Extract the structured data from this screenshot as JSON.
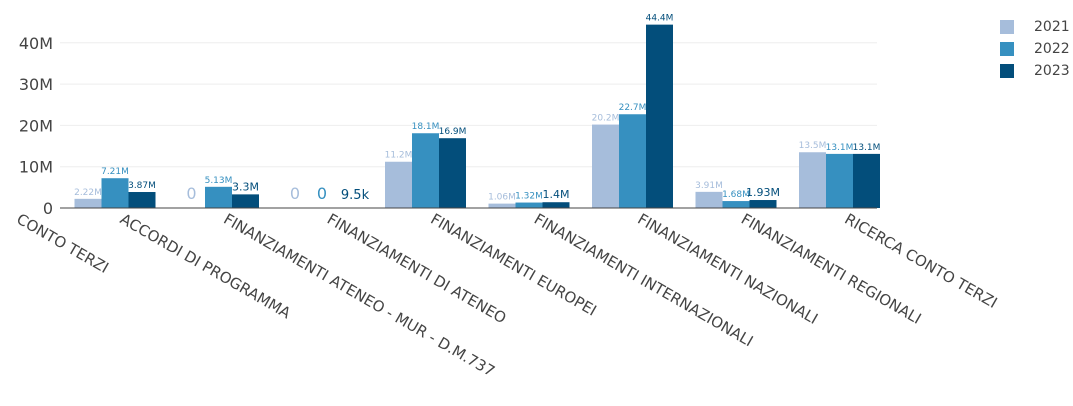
{
  "chart_data": {
    "type": "bar",
    "categories": [
      "CONTO TERZI",
      "ACCORDI DI PROGRAMMA",
      "FINANZIAMENTI ATENEO - MUR - D.M.737",
      "FINANZIAMENTI DI ATENEO",
      "FINANZIAMENTI EUROPEI",
      "FINANZIAMENTI INTERNAZIONALI",
      "FINANZIAMENTI NAZIONALI",
      "FINANZIAMENTI REGIONALI",
      "RICERCA CONTO TERZI"
    ],
    "series": [
      {
        "name": "2021",
        "color": "#a6bddb",
        "values": [
          null,
          2220000,
          0,
          0,
          11200000,
          1060000,
          20200000,
          3910000,
          13500000
        ],
        "labels": [
          null,
          "2.22M",
          "0",
          "0",
          "11.2M",
          "1.06M",
          "20.2M",
          "3.91M",
          "13.5M"
        ]
      },
      {
        "name": "2022",
        "color": "#3690c0",
        "values": [
          null,
          7210000,
          5130000,
          0,
          18100000,
          1320000,
          22700000,
          1680000,
          13100000
        ],
        "labels": [
          null,
          "7.21M",
          "5.13M",
          "0",
          "18.1M",
          "1.32M",
          "22.7M",
          "1.68M",
          "13.1M"
        ]
      },
      {
        "name": "2023",
        "color": "#034e7b",
        "values": [
          null,
          3870000,
          3300000,
          9500,
          16900000,
          1400000,
          44400000,
          1930000,
          13100000
        ],
        "labels": [
          null,
          "3.87M",
          "3.3M",
          "9.5k",
          "16.9M",
          "1.4M",
          "44.4M",
          "1.93M",
          "13.1M"
        ]
      }
    ],
    "yticks": [
      0,
      10000000,
      20000000,
      30000000,
      40000000
    ],
    "ytick_labels": [
      "0",
      "10M",
      "20M",
      "30M",
      "40M"
    ],
    "ylim": [
      0,
      48000000
    ],
    "grid": true,
    "legend_position": "top-right",
    "title": "",
    "xlabel": "",
    "ylabel": ""
  },
  "legend": [
    {
      "label": "2021",
      "color": "#a6bddb"
    },
    {
      "label": "2022",
      "color": "#3690c0"
    },
    {
      "label": "2023",
      "color": "#034e7b"
    }
  ]
}
